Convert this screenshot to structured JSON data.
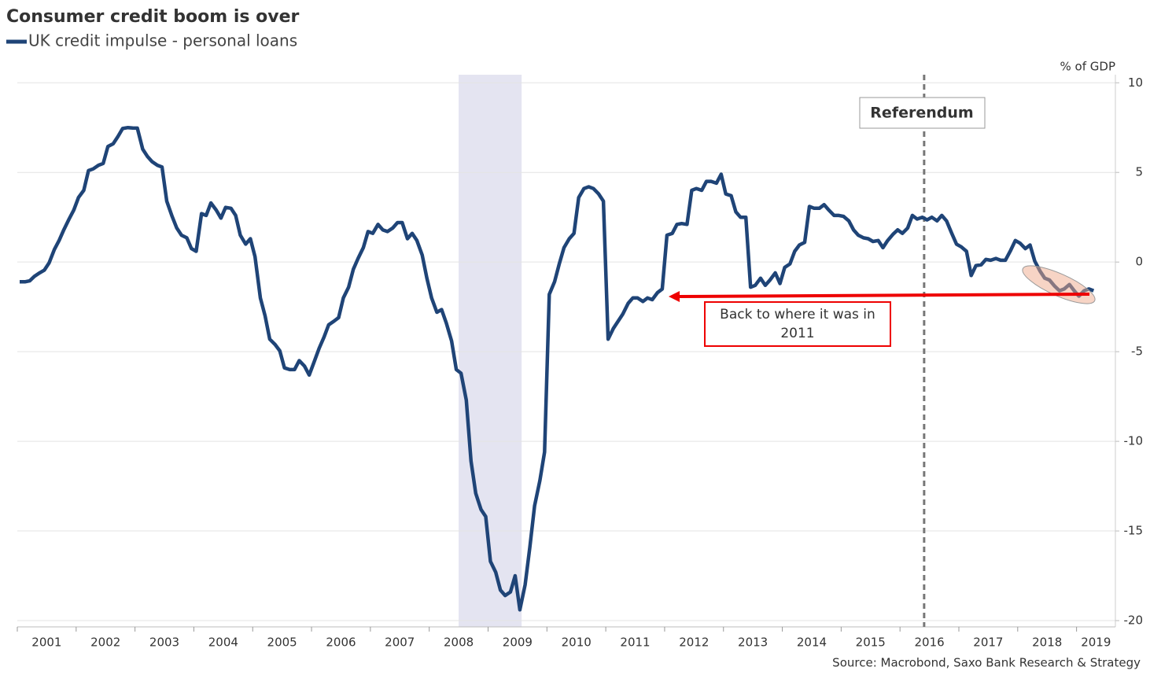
{
  "chart_data": {
    "type": "line",
    "title": "Consumer credit boom is over",
    "y_axis_label": "% of GDP",
    "source": "Source: Macrobond, Saxo Bank Research & Strategy",
    "annotations": {
      "referendum": "Referendum",
      "note": "Back to where it was in 2011"
    },
    "referendum_x": 2016.41,
    "shaded_region": [
      2008.5,
      2009.57
    ],
    "xlim": [
      2001,
      2019.66
    ],
    "xticks": [
      2001,
      2002,
      2003,
      2004,
      2005,
      2006,
      2007,
      2008,
      2009,
      2010,
      2011,
      2012,
      2013,
      2014,
      2015,
      2016,
      2017,
      2018,
      2019
    ],
    "ylim": [
      -20.35,
      10.45
    ],
    "yticks": [
      10,
      5,
      0,
      -5,
      -10,
      -15,
      -20
    ],
    "grid": true,
    "x": [
      2001.04,
      2001.13,
      2001.21,
      2001.29,
      2001.38,
      2001.46,
      2001.54,
      2001.63,
      2001.71,
      2001.79,
      2001.88,
      2001.96,
      2002.04,
      2002.13,
      2002.21,
      2002.29,
      2002.38,
      2002.46,
      2002.54,
      2002.63,
      2002.71,
      2002.79,
      2002.88,
      2002.96,
      2003.04,
      2003.13,
      2003.21,
      2003.29,
      2003.38,
      2003.46,
      2003.54,
      2003.63,
      2003.71,
      2003.79,
      2003.88,
      2003.96,
      2004.04,
      2004.13,
      2004.21,
      2004.29,
      2004.38,
      2004.46,
      2004.54,
      2004.63,
      2004.71,
      2004.79,
      2004.88,
      2004.96,
      2005.04,
      2005.13,
      2005.21,
      2005.29,
      2005.38,
      2005.46,
      2005.54,
      2005.63,
      2005.71,
      2005.79,
      2005.88,
      2005.96,
      2006.04,
      2006.13,
      2006.21,
      2006.29,
      2006.38,
      2006.46,
      2006.54,
      2006.63,
      2006.71,
      2006.79,
      2006.88,
      2006.96,
      2007.04,
      2007.13,
      2007.21,
      2007.29,
      2007.38,
      2007.46,
      2007.54,
      2007.63,
      2007.71,
      2007.79,
      2007.88,
      2007.96,
      2008.04,
      2008.13,
      2008.21,
      2008.29,
      2008.38,
      2008.46,
      2008.54,
      2008.63,
      2008.71,
      2008.79,
      2008.88,
      2008.96,
      2009.04,
      2009.13,
      2009.21,
      2009.29,
      2009.38,
      2009.46,
      2009.54,
      2009.63,
      2009.71,
      2009.79,
      2009.88,
      2009.96,
      2010.04,
      2010.13,
      2010.21,
      2010.29,
      2010.38,
      2010.46,
      2010.54,
      2010.63,
      2010.71,
      2010.79,
      2010.88,
      2010.96,
      2011.04,
      2011.13,
      2011.21,
      2011.29,
      2011.38,
      2011.46,
      2011.54,
      2011.63,
      2011.71,
      2011.79,
      2011.88,
      2011.96,
      2012.04,
      2012.13,
      2012.21,
      2012.29,
      2012.38,
      2012.46,
      2012.54,
      2012.63,
      2012.71,
      2012.79,
      2012.88,
      2012.96,
      2013.04,
      2013.13,
      2013.21,
      2013.29,
      2013.38,
      2013.46,
      2013.54,
      2013.63,
      2013.71,
      2013.79,
      2013.88,
      2013.96,
      2014.04,
      2014.13,
      2014.21,
      2014.29,
      2014.38,
      2014.46,
      2014.54,
      2014.63,
      2014.71,
      2014.79,
      2014.88,
      2014.96,
      2015.04,
      2015.13,
      2015.21,
      2015.29,
      2015.38,
      2015.46,
      2015.54,
      2015.63,
      2015.71,
      2015.79,
      2015.88,
      2015.96,
      2016.04,
      2016.13,
      2016.21,
      2016.29,
      2016.38,
      2016.46,
      2016.54,
      2016.63,
      2016.71,
      2016.79,
      2016.88,
      2016.96,
      2017.04,
      2017.13,
      2017.21,
      2017.29,
      2017.38,
      2017.46,
      2017.54,
      2017.63,
      2017.71,
      2017.79,
      2017.88,
      2017.96,
      2018.04,
      2018.13,
      2018.21,
      2018.29,
      2018.38,
      2018.46,
      2018.54,
      2018.63,
      2018.71,
      2018.79,
      2018.88,
      2018.96,
      2019.04,
      2019.13,
      2019.21,
      2019.29
    ],
    "series": [
      {
        "name": "UK credit impulse - personal loans",
        "color": "#1f4477",
        "values": [
          -1.1,
          -1.1,
          -1.05,
          -0.8,
          -0.6,
          -0.45,
          -0.05,
          0.7,
          1.2,
          1.8,
          2.4,
          2.9,
          3.6,
          4.0,
          5.1,
          5.2,
          5.4,
          5.5,
          6.45,
          6.6,
          7.0,
          7.45,
          7.5,
          7.48,
          7.47,
          6.3,
          5.9,
          5.6,
          5.4,
          5.3,
          3.4,
          2.55,
          1.9,
          1.5,
          1.35,
          0.75,
          0.6,
          2.7,
          2.6,
          3.3,
          2.9,
          2.45,
          3.05,
          3.0,
          2.6,
          1.5,
          1.0,
          1.3,
          0.3,
          -2.0,
          -3.0,
          -4.3,
          -4.6,
          -4.95,
          -5.9,
          -6.0,
          -6.0,
          -5.5,
          -5.8,
          -6.3,
          -5.6,
          -4.8,
          -4.2,
          -3.5,
          -3.3,
          -3.1,
          -2.0,
          -1.4,
          -0.4,
          0.2,
          0.8,
          1.7,
          1.6,
          2.1,
          1.8,
          1.7,
          1.9,
          2.2,
          2.2,
          1.3,
          1.6,
          1.2,
          0.4,
          -0.9,
          -2.0,
          -2.8,
          -2.65,
          -3.4,
          -4.4,
          -6.0,
          -6.2,
          -7.7,
          -11.1,
          -12.9,
          -13.8,
          -14.2,
          -16.7,
          -17.3,
          -18.3,
          -18.6,
          -18.4,
          -17.5,
          -19.4,
          -18.0,
          -15.9,
          -13.6,
          -12.2,
          -10.6,
          -1.8,
          -1.1,
          -0.1,
          0.8,
          1.3,
          1.6,
          3.6,
          4.1,
          4.2,
          4.1,
          3.8,
          3.4,
          -4.3,
          -3.7,
          -3.3,
          -2.9,
          -2.3,
          -2.0,
          -2.0,
          -2.2,
          -2.0,
          -2.1,
          -1.7,
          -1.5,
          1.5,
          1.6,
          2.1,
          2.15,
          2.1,
          4.0,
          4.1,
          4.0,
          4.5,
          4.5,
          4.4,
          4.9,
          3.8,
          3.7,
          2.8,
          2.5,
          2.5,
          -1.4,
          -1.3,
          -0.9,
          -1.3,
          -1.0,
          -0.6,
          -1.2,
          -0.3,
          -0.1,
          0.6,
          0.95,
          1.1,
          3.1,
          3.0,
          3.0,
          3.2,
          2.9,
          2.6,
          2.6,
          2.55,
          2.3,
          1.8,
          1.5,
          1.35,
          1.3,
          1.15,
          1.2,
          0.8,
          1.2,
          1.55,
          1.8,
          1.6,
          1.9,
          2.6,
          2.4,
          2.5,
          2.35,
          2.5,
          2.3,
          2.6,
          2.3,
          1.6,
          1.0,
          0.85,
          0.6,
          -0.75,
          -0.2,
          -0.15,
          0.15,
          0.1,
          0.2,
          0.1,
          0.1,
          0.65,
          1.2,
          1.05,
          0.75,
          0.95,
          0.05,
          -0.5,
          -0.9,
          -1.0,
          -1.35,
          -1.6,
          -1.5,
          -1.25,
          -1.6,
          -1.9,
          -1.6,
          -1.5,
          -1.6
        ]
      }
    ]
  }
}
